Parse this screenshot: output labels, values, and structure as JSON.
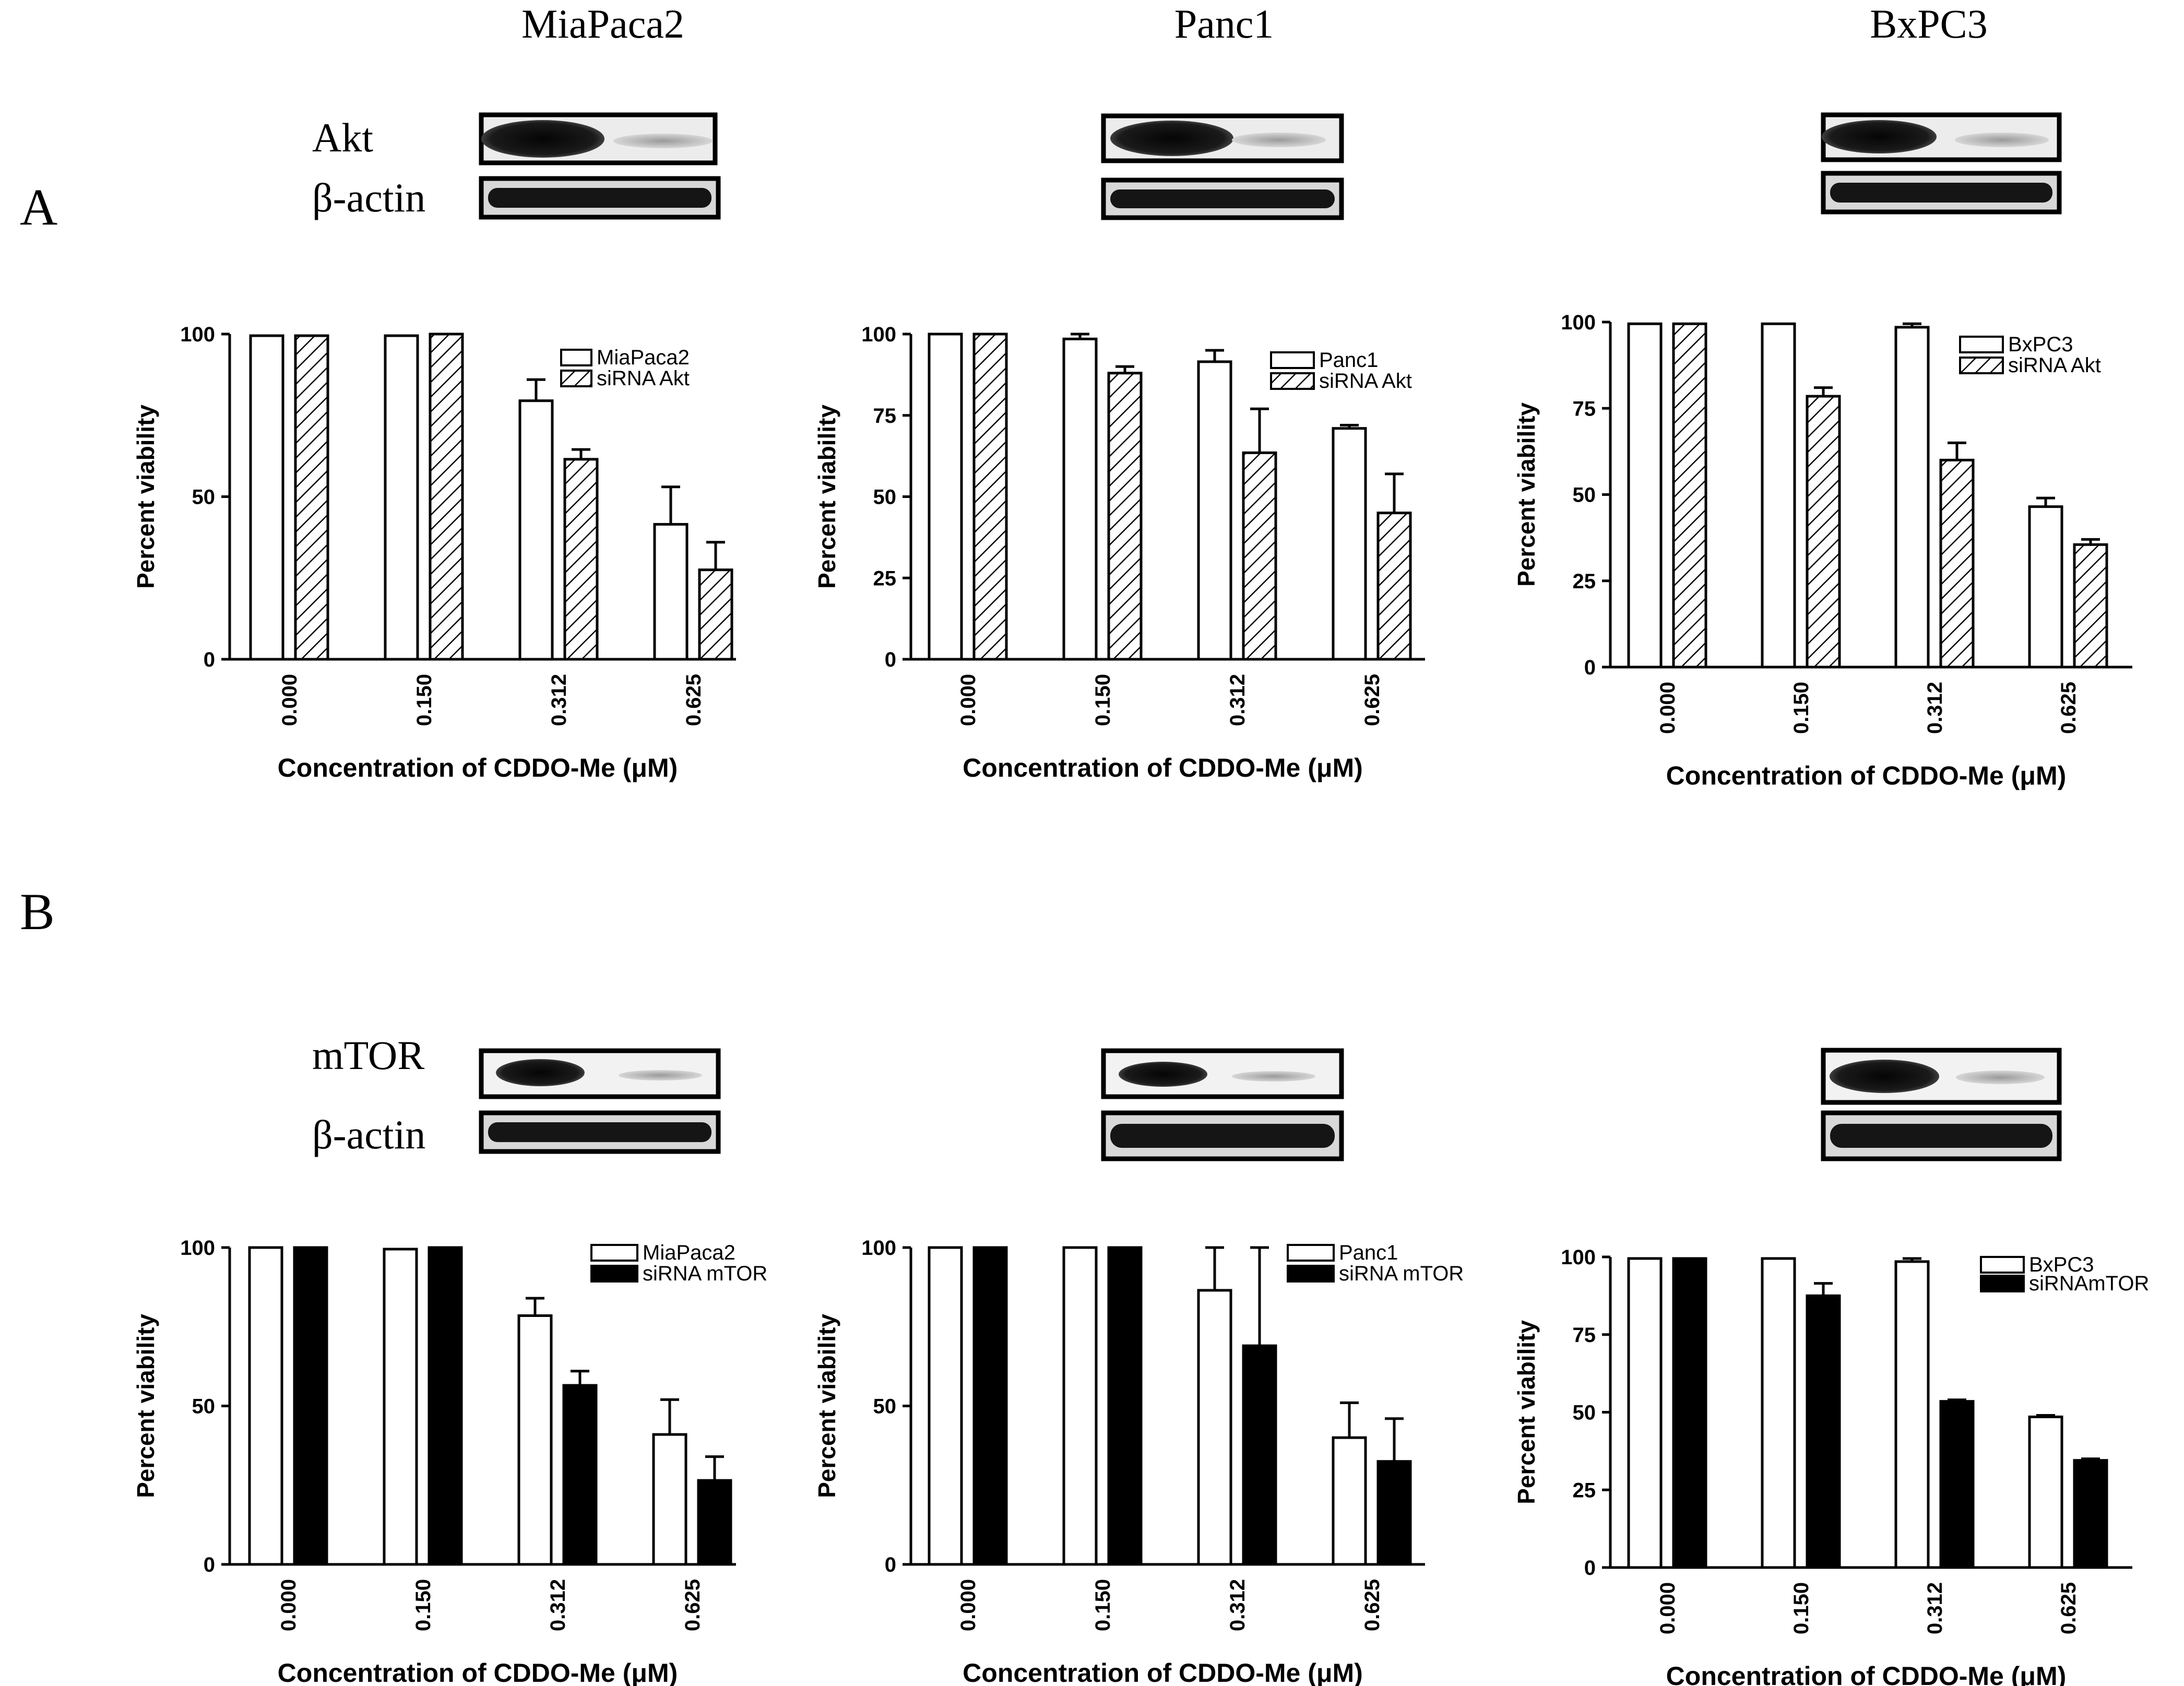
{
  "panel_labels": {
    "a": "A",
    "b": "B"
  },
  "cell_lines": [
    "MiaPaca2",
    "Panc1",
    "BxPC3"
  ],
  "blot_labels": {
    "row_a_target": "Akt",
    "row_b_target": "mTOR",
    "loading": "β-actin"
  },
  "colors": {
    "ink": "#000000",
    "paper": "#ffffff"
  },
  "chart_data": [
    {
      "type": "bar",
      "cell": "MiaPaca2",
      "fill": "hatch",
      "categories": [
        "0.000",
        "0.150",
        "0.312",
        "0.625"
      ],
      "series": [
        {
          "name": "MiaPaca2",
          "values": [
            99.5,
            99.5,
            79.5,
            41.5
          ],
          "errors": [
            0,
            0,
            6.5,
            11.5
          ]
        },
        {
          "name": "siRNA Akt",
          "values": [
            99.5,
            100,
            61.5,
            27.5
          ],
          "errors": [
            0,
            0,
            3,
            8.5
          ]
        }
      ],
      "ylim": [
        0,
        100
      ],
      "yticks": [
        0,
        50,
        100
      ],
      "xlabel": "Concentration of CDDO-Me (μM)",
      "ylabel": "Percent viability"
    },
    {
      "type": "bar",
      "cell": "Panc1",
      "fill": "hatch",
      "categories": [
        "0.000",
        "0.150",
        "0.312",
        "0.625"
      ],
      "series": [
        {
          "name": "Panc1",
          "values": [
            100,
            98.5,
            91.5,
            71
          ],
          "errors": [
            0,
            1.5,
            3.5,
            1
          ]
        },
        {
          "name": "siRNA Akt",
          "values": [
            100,
            88,
            63.5,
            45
          ],
          "errors": [
            0,
            2,
            13.5,
            12
          ]
        }
      ],
      "ylim": [
        0,
        100
      ],
      "yticks": [
        0,
        25,
        50,
        75,
        100
      ],
      "xlabel": "Concentration of CDDO-Me (μM)",
      "ylabel": "Percent viability"
    },
    {
      "type": "bar",
      "cell": "BxPC3",
      "fill": "hatch",
      "categories": [
        "0.000",
        "0.150",
        "0.312",
        "0.625"
      ],
      "series": [
        {
          "name": "BxPC3",
          "values": [
            99.5,
            99.5,
            98.5,
            46.5
          ],
          "errors": [
            0,
            0,
            1,
            2.5
          ]
        },
        {
          "name": "siRNA Akt",
          "values": [
            99.5,
            78.5,
            60,
            35.5
          ],
          "errors": [
            0,
            2.5,
            5,
            1.5
          ]
        }
      ],
      "ylim": [
        0,
        100
      ],
      "yticks": [
        0,
        25,
        50,
        75,
        100
      ],
      "xlabel": "Concentration of CDDO-Me (μM)",
      "ylabel": "Percent viability"
    },
    {
      "type": "bar",
      "cell": "MiaPaca2",
      "fill": "solid",
      "categories": [
        "0.000",
        "0.150",
        "0.312",
        "0.625"
      ],
      "series": [
        {
          "name": "MiaPaca2",
          "values": [
            100,
            99.5,
            78.5,
            41
          ],
          "errors": [
            0,
            0,
            5.5,
            11
          ]
        },
        {
          "name": "siRNA mTOR",
          "values": [
            100,
            100,
            56.5,
            26.5
          ],
          "errors": [
            0,
            0,
            4.5,
            7.5
          ]
        }
      ],
      "ylim": [
        0,
        100
      ],
      "yticks": [
        0,
        50,
        100
      ],
      "xlabel": "Concentration of CDDO-Me (μM)",
      "ylabel": "Percent viability"
    },
    {
      "type": "bar",
      "cell": "Panc1",
      "fill": "solid",
      "categories": [
        "0.000",
        "0.150",
        "0.312",
        "0.625"
      ],
      "series": [
        {
          "name": "Panc1",
          "values": [
            100,
            100,
            86.5,
            40
          ],
          "errors": [
            0,
            0,
            13.5,
            11
          ]
        },
        {
          "name": "siRNA mTOR",
          "values": [
            100,
            100,
            69,
            32.5
          ],
          "errors": [
            0,
            0,
            31,
            13.5
          ]
        }
      ],
      "ylim": [
        0,
        100
      ],
      "yticks": [
        0,
        50,
        100
      ],
      "xlabel": "Concentration of CDDO-Me (μM)",
      "ylabel": "Percent viability"
    },
    {
      "type": "bar",
      "cell": "BxPC3",
      "fill": "solid",
      "categories": [
        "0.000",
        "0.150",
        "0.312",
        "0.625"
      ],
      "series": [
        {
          "name": "BxPC3",
          "values": [
            99.5,
            99.5,
            98.5,
            48.5
          ],
          "errors": [
            0,
            0,
            1,
            0.5
          ]
        },
        {
          "name": "siRNAmTOR",
          "values": [
            99.5,
            87.5,
            53.5,
            34.5
          ],
          "errors": [
            0,
            4,
            0.5,
            0.5
          ]
        }
      ],
      "ylim": [
        0,
        100
      ],
      "yticks": [
        0,
        25,
        50,
        75,
        100
      ],
      "xlabel": "Concentration of CDDO-Me (μM)",
      "ylabel": "Percent viability"
    }
  ]
}
